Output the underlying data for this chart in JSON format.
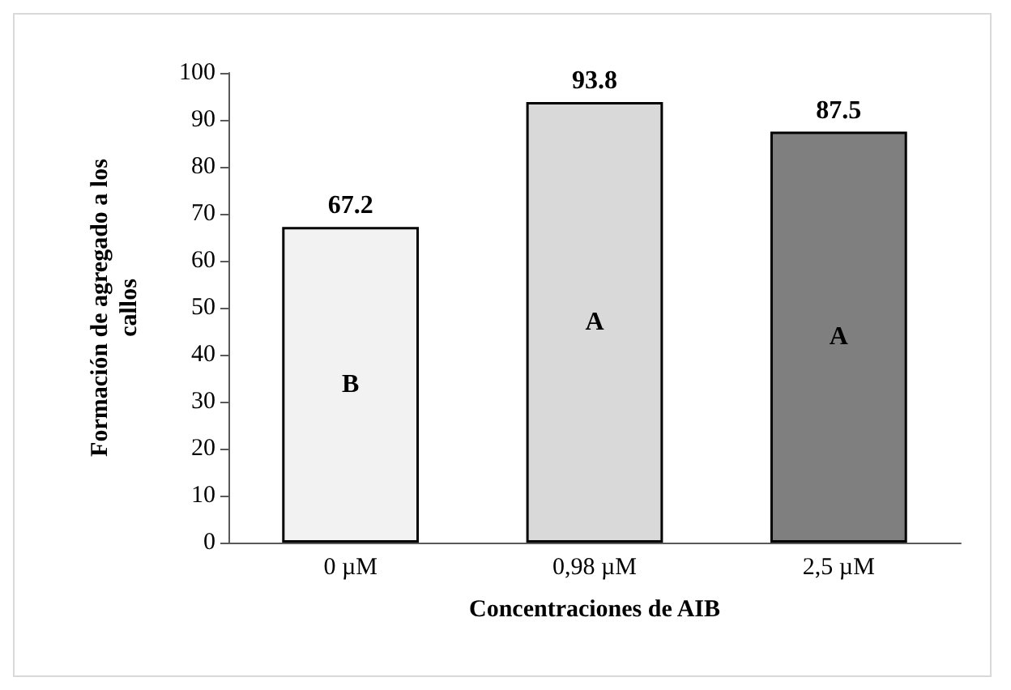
{
  "chart_data": {
    "type": "bar",
    "xlabel": "Concentraciones de AIB",
    "ylabel": "Formación de agregado a los callos",
    "categories": [
      "0 µM",
      "0,98 µM",
      "2,5 µM"
    ],
    "values": [
      67.2,
      93.8,
      87.5
    ],
    "colors": [
      "#f2f2f2",
      "#d9d9d9",
      "#7f7f7f"
    ],
    "ylim": [
      0,
      100
    ],
    "yticks": [
      0,
      10,
      20,
      30,
      40,
      50,
      60,
      70,
      80,
      90,
      100
    ],
    "grid": false,
    "data_labels": true,
    "annotations": [
      "B",
      "A",
      "A"
    ]
  }
}
